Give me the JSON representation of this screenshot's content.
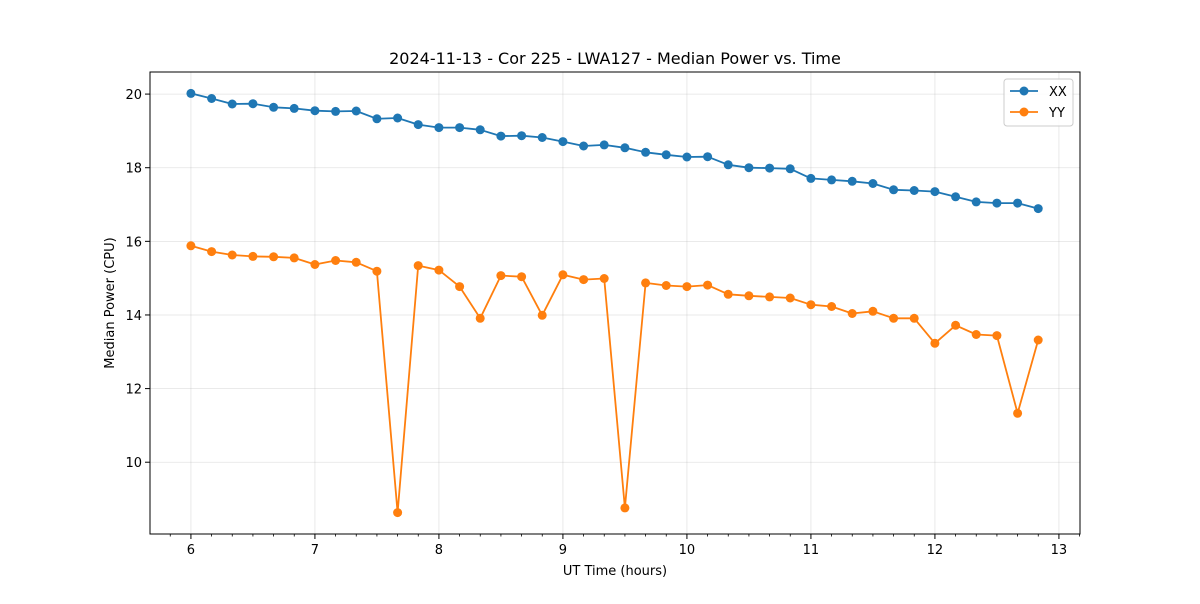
{
  "chart_data": {
    "type": "line",
    "title": "2024-11-13 - Cor 225 - LWA127 - Median Power vs. Time",
    "xlabel": "UT Time (hours)",
    "ylabel": "Median Power (CPU)",
    "xlim": [
      5.67,
      13.17
    ],
    "ylim": [
      8.05,
      20.6
    ],
    "xticks": [
      6,
      7,
      8,
      9,
      10,
      11,
      12,
      13
    ],
    "yticks": [
      10,
      12,
      14,
      16,
      18,
      20
    ],
    "grid": true,
    "legend_position": "top-right",
    "x": [
      6.0,
      6.1667,
      6.3333,
      6.5,
      6.6667,
      6.8333,
      7.0,
      7.1667,
      7.3333,
      7.5,
      7.6667,
      7.8333,
      8.0,
      8.1667,
      8.3333,
      8.5,
      8.6667,
      8.8333,
      9.0,
      9.1667,
      9.3333,
      9.5,
      9.6667,
      9.8333,
      10.0,
      10.1667,
      10.3333,
      10.5,
      10.6667,
      10.8333,
      11.0,
      11.1667,
      11.3333,
      11.5,
      11.6667,
      11.8333,
      12.0,
      12.1667,
      12.3333,
      12.5,
      12.6667,
      12.8333
    ],
    "series": [
      {
        "name": "XX",
        "color": "#1f77b4",
        "values": [
          20.02,
          19.88,
          19.73,
          19.74,
          19.64,
          19.61,
          19.55,
          19.53,
          19.54,
          19.33,
          19.35,
          19.17,
          19.09,
          19.09,
          19.03,
          18.86,
          18.87,
          18.82,
          18.71,
          18.59,
          18.62,
          18.54,
          18.42,
          18.35,
          18.29,
          18.3,
          18.08,
          18.0,
          17.99,
          17.97,
          17.71,
          17.67,
          17.63,
          17.57,
          17.4,
          17.38,
          17.35,
          17.21,
          17.07,
          17.04,
          17.04,
          16.89
        ]
      },
      {
        "name": "YY",
        "color": "#ff7f0e",
        "values": [
          15.88,
          15.72,
          15.63,
          15.59,
          15.58,
          15.55,
          15.37,
          15.48,
          15.43,
          15.19,
          8.63,
          15.34,
          15.22,
          14.77,
          13.91,
          15.07,
          15.04,
          13.99,
          15.09,
          14.96,
          14.99,
          8.76,
          14.87,
          14.8,
          14.77,
          14.81,
          14.56,
          14.52,
          14.49,
          14.46,
          14.28,
          14.23,
          14.04,
          14.1,
          13.91,
          13.91,
          13.23,
          13.72,
          13.47,
          13.44,
          11.33,
          13.32
        ]
      }
    ]
  }
}
